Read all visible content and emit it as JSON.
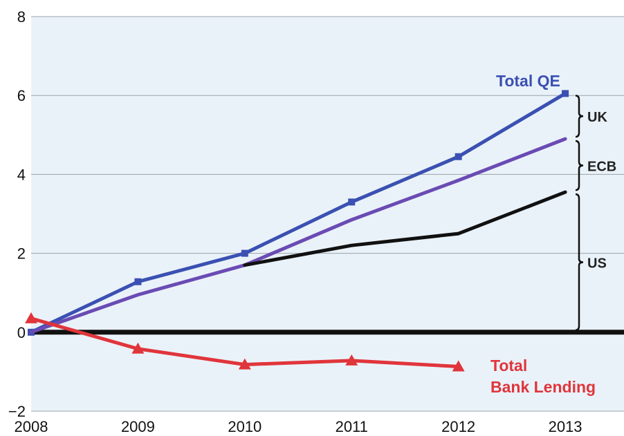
{
  "chart_data": {
    "type": "line",
    "title": "",
    "xlabel": "",
    "ylabel": "",
    "x": [
      2008,
      2009,
      2010,
      2011,
      2012,
      2013
    ],
    "xlim": [
      2008,
      2013.55
    ],
    "ylim": [
      -2,
      8
    ],
    "x_ticks": [
      "2008",
      "2009",
      "2010",
      "2011",
      "2012",
      "2013"
    ],
    "y_ticks": [
      "8",
      "6",
      "4",
      "2",
      "0",
      "−2"
    ],
    "grid": true,
    "series": [
      {
        "name": "Total QE",
        "color": "#3a50b2",
        "marker": "square",
        "x": [
          2008,
          2009,
          2010,
          2011,
          2012,
          2013
        ],
        "values": [
          0,
          1.28,
          2.0,
          3.3,
          4.45,
          6.05
        ]
      },
      {
        "name": "",
        "color": "#6a4bb4",
        "marker": "none",
        "x": [
          2008,
          2009,
          2010,
          2011,
          2012,
          2013
        ],
        "values": [
          0,
          0.95,
          1.7,
          2.85,
          3.85,
          4.9
        ]
      },
      {
        "name": "",
        "color": "#111111",
        "marker": "none",
        "x": [
          2010,
          2011,
          2012,
          2013
        ],
        "values": [
          1.7,
          2.2,
          2.5,
          3.55
        ]
      },
      {
        "name": "Total Bank Lending",
        "color": "#e0353b",
        "marker": "triangle",
        "x": [
          2008,
          2009,
          2010,
          2011,
          2012
        ],
        "values": [
          0.35,
          -0.42,
          -0.82,
          -0.72,
          -0.87
        ]
      }
    ],
    "brackets": [
      {
        "label": "UK",
        "from": 4.9,
        "to": 6.05
      },
      {
        "label": "ECB",
        "from": 3.55,
        "to": 4.9
      },
      {
        "label": "US",
        "from": 0,
        "to": 3.55
      }
    ],
    "annotations": {
      "total_qe": "Total QE",
      "bank_lending_line1": "Total",
      "bank_lending_line2": "Bank Lending"
    }
  }
}
